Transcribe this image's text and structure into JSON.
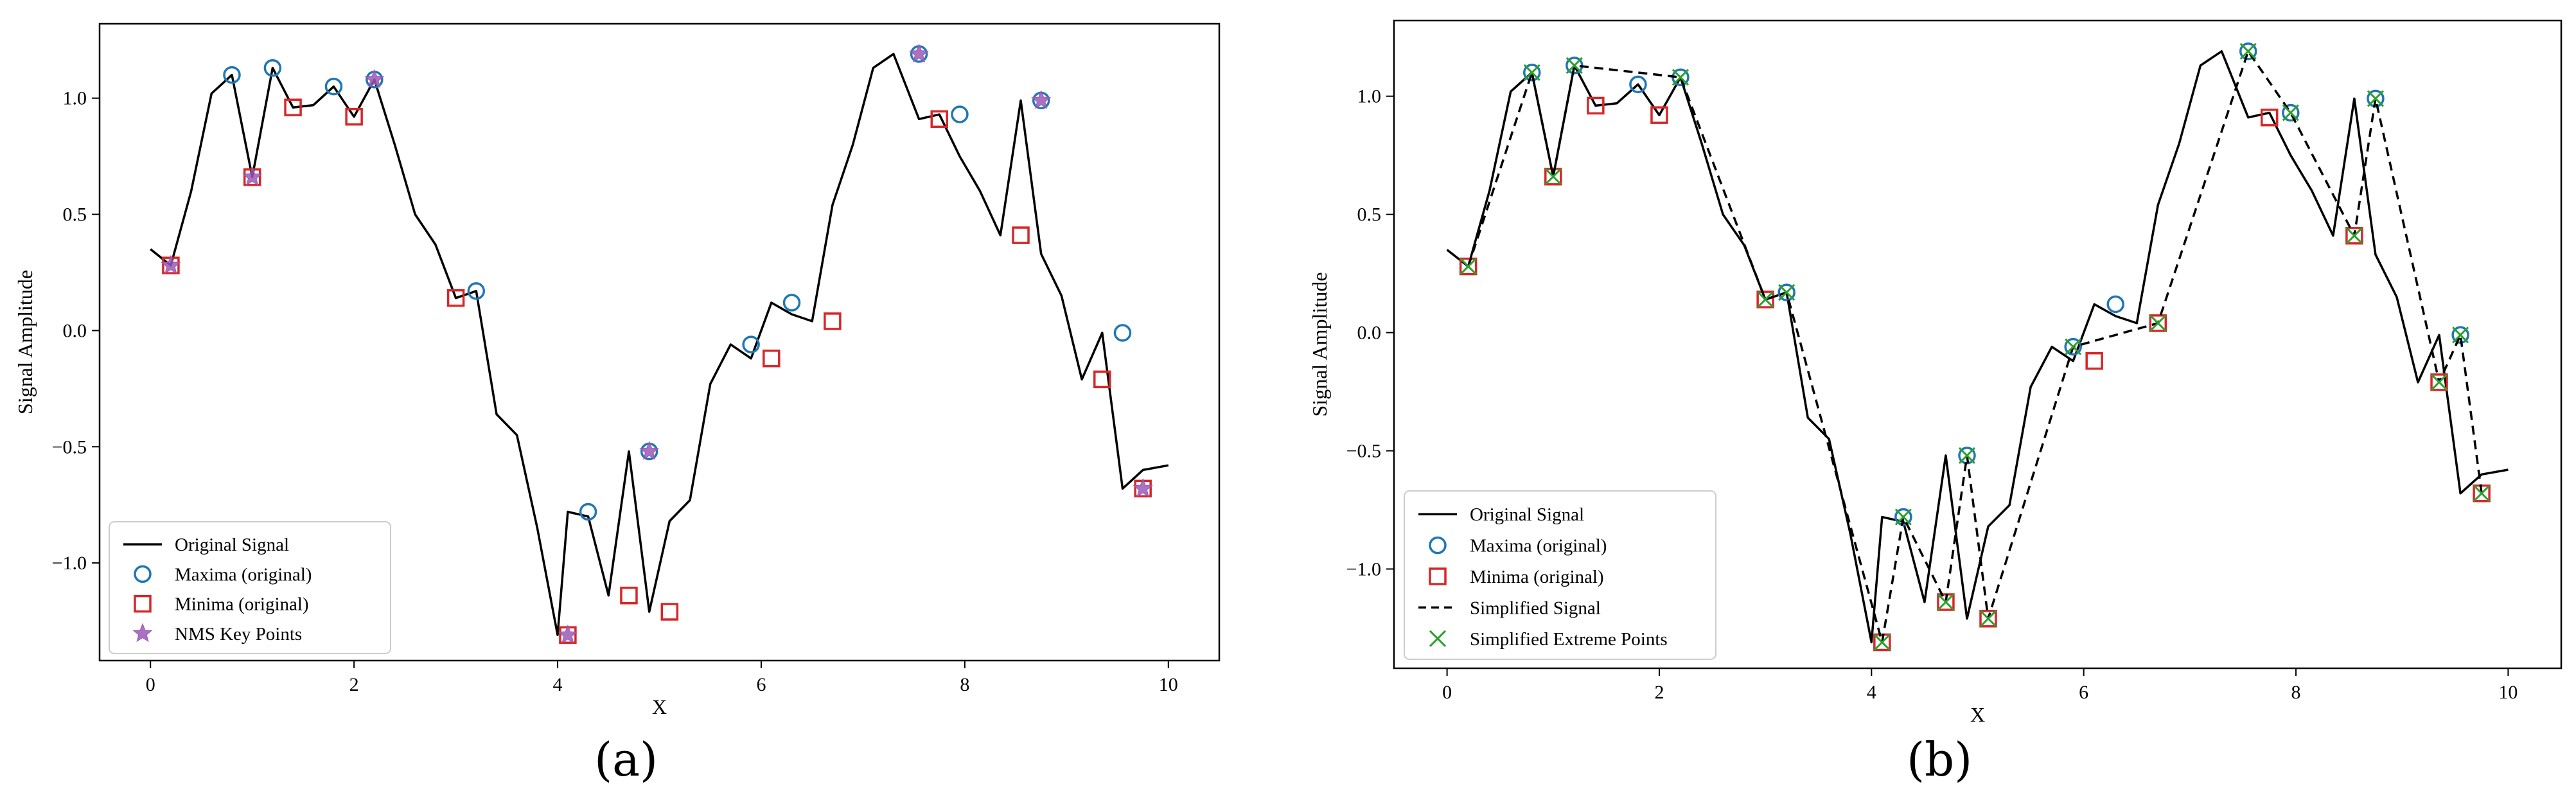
{
  "figure": {
    "panel_labels": [
      "(a)",
      "(b)"
    ]
  },
  "colors": {
    "signal": "#000000",
    "maxima": "#1f77b4",
    "minima": "#d62728",
    "nms": "#9b59b6",
    "simplified_points": "#2ca02c",
    "frame": "#000000"
  },
  "chart_data": [
    {
      "type": "line",
      "panel": "(a)",
      "xlabel": "X",
      "ylabel": "Signal Amplitude",
      "xlim": [
        -0.5,
        10.5
      ],
      "ylim": [
        -1.42,
        1.32
      ],
      "xticks": [
        0,
        2,
        4,
        6,
        8,
        10
      ],
      "yticks": [
        -1.0,
        -0.5,
        0.0,
        0.5,
        1.0
      ],
      "xtick_labels": [
        "0",
        "2",
        "4",
        "6",
        "8",
        "10"
      ],
      "ytick_labels": [
        "−1.0",
        "−0.5",
        "0.0",
        "0.5",
        "1.0"
      ],
      "legend_position": "lower-left",
      "series": [
        {
          "name": "Original Signal",
          "style": "solid-line",
          "x": [
            0,
            0.2,
            0.4,
            0.6,
            0.8,
            1.0,
            1.2,
            1.4,
            1.6,
            1.8,
            2.0,
            2.2,
            2.4,
            2.6,
            2.8,
            3.0,
            3.2,
            3.4,
            3.6,
            3.8,
            4.0,
            4.1,
            4.3,
            4.5,
            4.7,
            4.9,
            5.1,
            5.3,
            5.5,
            5.7,
            5.9,
            6.1,
            6.3,
            6.5,
            6.7,
            6.9,
            7.1,
            7.3,
            7.55,
            7.75,
            7.95,
            8.15,
            8.35,
            8.55,
            8.75,
            8.95,
            9.15,
            9.35,
            9.55,
            9.75,
            10.0
          ],
          "y": [
            0.35,
            0.28,
            0.6,
            1.02,
            1.1,
            0.66,
            1.13,
            0.96,
            0.97,
            1.05,
            0.92,
            1.08,
            0.8,
            0.5,
            0.37,
            0.14,
            0.17,
            -0.36,
            -0.45,
            -0.85,
            -1.31,
            -0.78,
            -0.8,
            -1.14,
            -0.52,
            -1.21,
            -0.82,
            -0.73,
            -0.23,
            -0.06,
            -0.12,
            0.12,
            0.07,
            0.04,
            0.54,
            0.8,
            1.13,
            1.19,
            0.91,
            0.93,
            0.75,
            0.6,
            0.41,
            0.99,
            0.33,
            0.15,
            -0.21,
            -0.01,
            -0.68,
            -0.6,
            -0.58
          ]
        },
        {
          "name": "Maxima (original)",
          "style": "circle",
          "x": [
            0.8,
            1.2,
            1.8,
            2.2,
            3.2,
            4.3,
            4.9,
            5.9,
            6.3,
            7.55,
            7.95,
            8.75,
            9.55
          ],
          "y": [
            1.1,
            1.13,
            1.05,
            1.08,
            0.17,
            -0.78,
            -0.52,
            -0.06,
            0.12,
            1.19,
            0.93,
            0.99,
            -0.01
          ]
        },
        {
          "name": "Minima (original)",
          "style": "square",
          "x": [
            0.2,
            1.0,
            1.4,
            2.0,
            3.0,
            4.1,
            4.7,
            5.1,
            6.1,
            6.7,
            7.75,
            8.55,
            9.35,
            9.75
          ],
          "y": [
            0.28,
            0.66,
            0.96,
            0.92,
            0.14,
            -1.31,
            -1.14,
            -1.21,
            -0.12,
            0.04,
            0.91,
            0.41,
            -0.21,
            -0.68
          ]
        },
        {
          "name": "NMS Key Points",
          "style": "star",
          "x": [
            0.2,
            1.0,
            2.2,
            4.1,
            4.9,
            7.55,
            8.75,
            9.75
          ],
          "y": [
            0.28,
            0.66,
            1.08,
            -1.31,
            -0.52,
            1.19,
            0.99,
            -0.68
          ]
        }
      ]
    },
    {
      "type": "line",
      "panel": "(b)",
      "xlabel": "X",
      "ylabel": "Signal Amplitude",
      "xlim": [
        -0.5,
        10.5
      ],
      "ylim": [
        -1.42,
        1.32
      ],
      "xticks": [
        0,
        2,
        4,
        6,
        8,
        10
      ],
      "yticks": [
        -1.0,
        -0.5,
        0.0,
        0.5,
        1.0
      ],
      "xtick_labels": [
        "0",
        "2",
        "4",
        "6",
        "8",
        "10"
      ],
      "ytick_labels": [
        "−1.0",
        "−0.5",
        "0.0",
        "0.5",
        "1.0"
      ],
      "legend_position": "lower-left",
      "series": [
        {
          "name": "Original Signal",
          "style": "solid-line",
          "x": [
            0,
            0.2,
            0.4,
            0.6,
            0.8,
            1.0,
            1.2,
            1.4,
            1.6,
            1.8,
            2.0,
            2.2,
            2.4,
            2.6,
            2.8,
            3.0,
            3.2,
            3.4,
            3.6,
            3.8,
            4.0,
            4.1,
            4.3,
            4.5,
            4.7,
            4.9,
            5.1,
            5.3,
            5.5,
            5.7,
            5.9,
            6.1,
            6.3,
            6.5,
            6.7,
            6.9,
            7.1,
            7.3,
            7.55,
            7.75,
            7.95,
            8.15,
            8.35,
            8.55,
            8.75,
            8.95,
            9.15,
            9.35,
            9.55,
            9.75,
            10.0
          ],
          "y": [
            0.35,
            0.28,
            0.6,
            1.02,
            1.1,
            0.66,
            1.13,
            0.96,
            0.97,
            1.05,
            0.92,
            1.08,
            0.8,
            0.5,
            0.37,
            0.14,
            0.17,
            -0.36,
            -0.45,
            -0.85,
            -1.31,
            -0.78,
            -0.8,
            -1.14,
            -0.52,
            -1.21,
            -0.82,
            -0.73,
            -0.23,
            -0.06,
            -0.12,
            0.12,
            0.07,
            0.04,
            0.54,
            0.8,
            1.13,
            1.19,
            0.91,
            0.93,
            0.75,
            0.6,
            0.41,
            0.99,
            0.33,
            0.15,
            -0.21,
            -0.01,
            -0.68,
            -0.6,
            -0.58
          ]
        },
        {
          "name": "Maxima (original)",
          "style": "circle",
          "x": [
            0.8,
            1.2,
            1.8,
            2.2,
            3.2,
            4.3,
            4.9,
            5.9,
            6.3,
            7.55,
            7.95,
            8.75,
            9.55
          ],
          "y": [
            1.1,
            1.13,
            1.05,
            1.08,
            0.17,
            -0.78,
            -0.52,
            -0.06,
            0.12,
            1.19,
            0.93,
            0.99,
            -0.01
          ]
        },
        {
          "name": "Minima (original)",
          "style": "square",
          "x": [
            0.2,
            1.0,
            1.4,
            2.0,
            3.0,
            4.1,
            4.7,
            5.1,
            6.1,
            6.7,
            7.75,
            8.55,
            9.35,
            9.75
          ],
          "y": [
            0.28,
            0.66,
            0.96,
            0.92,
            0.14,
            -1.31,
            -1.14,
            -1.21,
            -0.12,
            0.04,
            0.91,
            0.41,
            -0.21,
            -0.68
          ]
        },
        {
          "name": "Simplified Signal",
          "style": "dashed-line",
          "x": [
            0.2,
            0.8,
            1.0,
            1.2,
            2.2,
            3.0,
            3.2,
            4.1,
            4.3,
            4.7,
            4.9,
            5.1,
            5.9,
            6.7,
            7.55,
            7.95,
            8.55,
            8.75,
            9.35,
            9.55,
            9.75
          ],
          "y": [
            0.28,
            1.1,
            0.66,
            1.13,
            1.08,
            0.14,
            0.17,
            -1.31,
            -0.78,
            -1.14,
            -0.52,
            -1.21,
            -0.06,
            0.04,
            1.19,
            0.93,
            0.41,
            0.99,
            -0.21,
            -0.01,
            -0.68
          ]
        },
        {
          "name": "Simplified Extreme Points",
          "style": "x",
          "x": [
            0.2,
            0.8,
            1.0,
            1.2,
            2.2,
            3.0,
            3.2,
            4.1,
            4.3,
            4.7,
            4.9,
            5.1,
            5.9,
            6.7,
            7.55,
            7.95,
            8.55,
            8.75,
            9.35,
            9.55,
            9.75
          ],
          "y": [
            0.28,
            1.1,
            0.66,
            1.13,
            1.08,
            0.14,
            0.17,
            -1.31,
            -0.78,
            -1.14,
            -0.52,
            -1.21,
            -0.06,
            0.04,
            1.19,
            0.93,
            0.41,
            0.99,
            -0.21,
            -0.01,
            -0.68
          ]
        }
      ]
    }
  ]
}
